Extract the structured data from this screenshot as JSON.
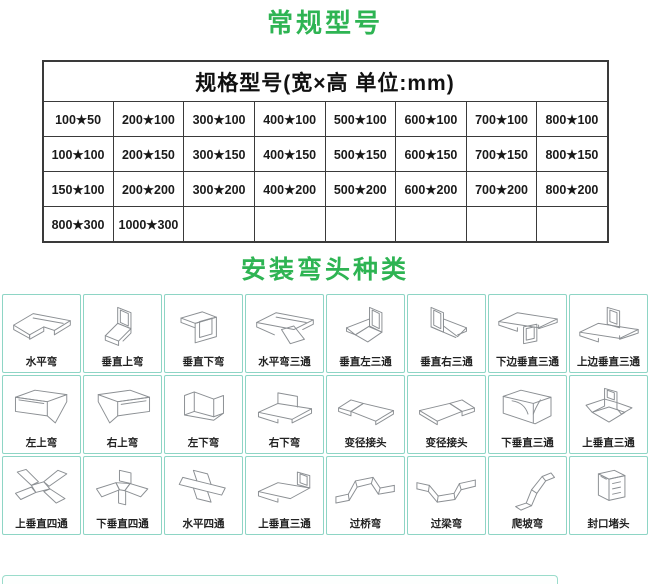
{
  "colors": {
    "title_green": "#2eb453",
    "table_border": "#3a3a3a",
    "grid_border": "#8ed5c5",
    "drawing_stroke": "#8b8f93"
  },
  "section_models": {
    "title": "常规型号"
  },
  "spec_table": {
    "header": "规格型号(宽×高  单位:mm)",
    "rows": [
      [
        "100★50",
        "200★100",
        "300★100",
        "400★100",
        "500★100",
        "600★100",
        "700★100",
        "800★100"
      ],
      [
        "100★100",
        "200★150",
        "300★150",
        "400★150",
        "500★150",
        "600★150",
        "700★150",
        "800★150"
      ],
      [
        "150★100",
        "200★200",
        "300★200",
        "400★200",
        "500★200",
        "600★200",
        "700★200",
        "800★200"
      ],
      [
        "800★300",
        "1000★300",
        "",
        "",
        "",
        "",
        "",
        ""
      ]
    ]
  },
  "section_elbows": {
    "title": "安装弯头种类"
  },
  "fittings": {
    "rows": [
      [
        {
          "label": "水平弯",
          "icon": "horizontal-bend"
        },
        {
          "label": "垂直上弯",
          "icon": "vertical-up-bend"
        },
        {
          "label": "垂直下弯",
          "icon": "vertical-down-bend"
        },
        {
          "label": "水平弯三通",
          "icon": "horizontal-tee"
        },
        {
          "label": "垂直左三通",
          "icon": "vertical-left-tee"
        },
        {
          "label": "垂直右三通",
          "icon": "vertical-right-tee"
        },
        {
          "label": "下边垂直三通",
          "icon": "bottom-edge-vertical-tee"
        },
        {
          "label": "上边垂直三通",
          "icon": "top-edge-vertical-tee"
        }
      ],
      [
        {
          "label": "左上弯",
          "icon": "left-up-bend"
        },
        {
          "label": "右上弯",
          "icon": "right-up-bend"
        },
        {
          "label": "左下弯",
          "icon": "left-down-bend"
        },
        {
          "label": "右下弯",
          "icon": "right-down-bend"
        },
        {
          "label": "变径接头",
          "icon": "reducer"
        },
        {
          "label": "变径接头",
          "icon": "reducer-mirror"
        },
        {
          "label": "下垂直三通",
          "icon": "down-vertical-tee"
        },
        {
          "label": "上垂直三通",
          "icon": "up-vertical-tee"
        }
      ],
      [
        {
          "label": "上垂直四通",
          "icon": "up-vertical-cross"
        },
        {
          "label": "下垂直四通",
          "icon": "down-vertical-cross"
        },
        {
          "label": "水平四通",
          "icon": "horizontal-cross"
        },
        {
          "label": "上垂直三通",
          "icon": "up-vertical-tee-b"
        },
        {
          "label": "过桥弯",
          "icon": "bridge-bend"
        },
        {
          "label": "过梁弯",
          "icon": "beam-bend"
        },
        {
          "label": "爬坡弯",
          "icon": "slope-bend"
        },
        {
          "label": "封口堵头",
          "icon": "end-cap"
        }
      ]
    ]
  }
}
